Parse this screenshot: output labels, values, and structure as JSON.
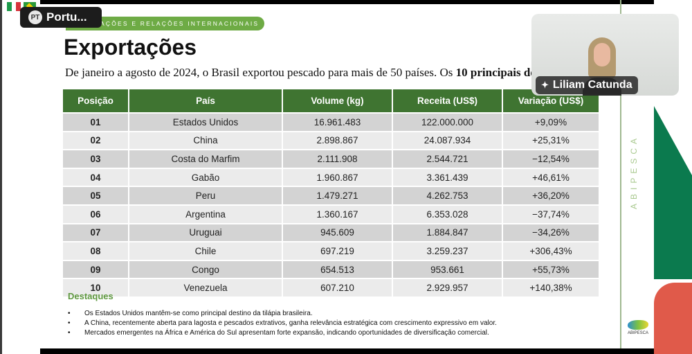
{
  "overlay": {
    "language_chip": {
      "code": "PT",
      "label": "Portu..."
    },
    "flags": [
      "italy-flag",
      "brazil-flag"
    ]
  },
  "slide": {
    "section_label": "AÇÕES E RELAÇÕES INTERNACIONAIS",
    "title": "Exportações",
    "subtitle_plain": "De janeiro a agosto de 2024, o Brasil exportou pescado para mais de 50 países. Os ",
    "subtitle_bold": "10 principais des",
    "table": {
      "headers": [
        "Posição",
        "País",
        "Volume (kg)",
        "Receita (US$)",
        "Variação (US$)"
      ],
      "rows": [
        [
          "01",
          "Estados Unidos",
          "16.961.483",
          "122.000.000",
          "+9,09%"
        ],
        [
          "02",
          "China",
          "2.898.867",
          "24.087.934",
          "+25,31%"
        ],
        [
          "03",
          "Costa do Marfim",
          "2.111.908",
          "2.544.721",
          "−12,54%"
        ],
        [
          "04",
          "Gabão",
          "1.960.867",
          "3.361.439",
          "+46,61%"
        ],
        [
          "05",
          "Peru",
          "1.479.271",
          "4.262.753",
          "+36,20%"
        ],
        [
          "06",
          "Argentina",
          "1.360.167",
          "6.353.028",
          "−37,74%"
        ],
        [
          "07",
          "Uruguai",
          "945.609",
          "1.884.847",
          "−34,26%"
        ],
        [
          "08",
          "Chile",
          "697.219",
          "3.259.237",
          "+306,43%"
        ],
        [
          "09",
          "Congo",
          "654.513",
          "953.661",
          "+55,73%"
        ],
        [
          "10",
          "Venezuela",
          "607.210",
          "2.929.957",
          "+140,38%"
        ]
      ]
    },
    "highlights": {
      "title": "Destaques",
      "items": [
        "Os Estados Unidos mantêm-se como principal destino da tilápia brasileira.",
        "A China, recentemente aberta para lagosta e pescados extrativos, ganha relevância estratégica com crescimento expressivo em valor.",
        "Mercados emergentes na África e América do Sul apresentam forte expansão, indicando oportunidades de diversificação comercial."
      ]
    },
    "brand_vertical": "ABIPESCA",
    "logo_label": "ABIPESCA",
    "colors": {
      "header_green": "#3f7431",
      "pill_green": "#6eab45",
      "deco_green": "#0b7a4e",
      "deco_red": "#e05a4a"
    }
  },
  "video": {
    "participant_name": "Liliam Catunda",
    "pinned": true
  }
}
